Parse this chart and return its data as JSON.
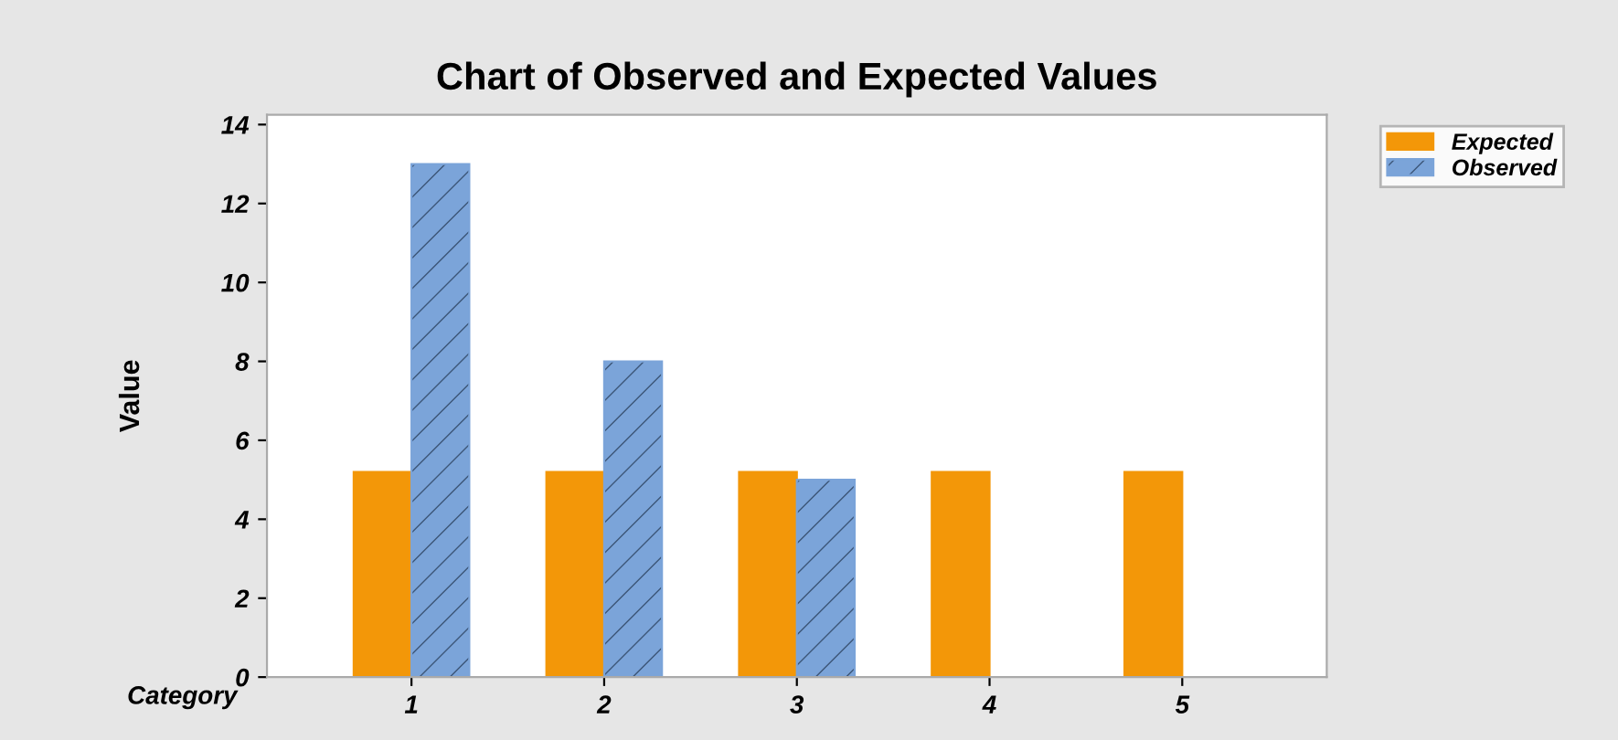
{
  "chart_data": {
    "type": "bar",
    "title": "Chart of Observed and Expected Values",
    "xlabel": "Category",
    "ylabel": "Value",
    "categories": [
      "1",
      "2",
      "3",
      "4",
      "5"
    ],
    "series": [
      {
        "name": "Expected",
        "color": "#f39708",
        "values": [
          5.2,
          5.2,
          5.2,
          5.2,
          5.2
        ]
      },
      {
        "name": "Observed",
        "color": "#7ba4d9",
        "values": [
          13,
          8,
          5,
          0,
          0
        ]
      }
    ],
    "ylim": [
      0,
      14.25
    ],
    "yticks": [
      0,
      2,
      4,
      6,
      8,
      10,
      12,
      14
    ],
    "grid": false,
    "legend": "top right"
  }
}
